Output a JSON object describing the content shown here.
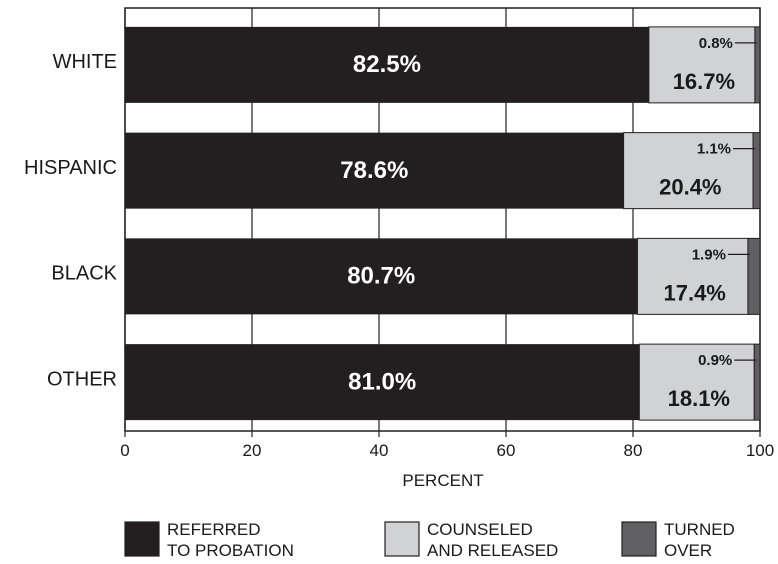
{
  "chart_data": {
    "type": "bar",
    "orientation": "horizontal",
    "stacked": true,
    "categories": [
      "WHITE",
      "HISPANIC",
      "BLACK",
      "OTHER"
    ],
    "series": [
      {
        "name": "REFERRED TO PROBATION",
        "values": [
          82.5,
          78.6,
          80.7,
          81.0
        ],
        "labels": [
          "82.5%",
          "78.6%",
          "80.7%",
          "81.0%"
        ],
        "color": "#231f20"
      },
      {
        "name": "COUNSELED AND RELEASED",
        "values": [
          16.7,
          20.4,
          17.4,
          18.1
        ],
        "labels": [
          "16.7%",
          "20.4%",
          "17.4%",
          "18.1%"
        ],
        "color": "#d1d2d4"
      },
      {
        "name": "TURNED OVER",
        "values": [
          0.8,
          1.1,
          1.9,
          0.9
        ],
        "labels": [
          "0.8%",
          "1.1%",
          "1.9%",
          "0.9%"
        ],
        "color": "#606062"
      }
    ],
    "xlabel": "PERCENT",
    "ylabel": "",
    "xlim": [
      0,
      100
    ],
    "xticks": [
      0,
      20,
      40,
      60,
      80,
      100
    ],
    "xtick_labels": [
      "0",
      "20",
      "40",
      "60",
      "80",
      "100"
    ],
    "grid": true,
    "legend": {
      "placement": "bottom",
      "entries": [
        {
          "line1": "REFERRED",
          "line2": "TO PROBATION",
          "color": "#231f20"
        },
        {
          "line1": "COUNSELED",
          "line2": "AND RELEASED",
          "color": "#d1d2d4"
        },
        {
          "line1": "TURNED",
          "line2": "OVER",
          "color": "#606062"
        }
      ]
    }
  }
}
